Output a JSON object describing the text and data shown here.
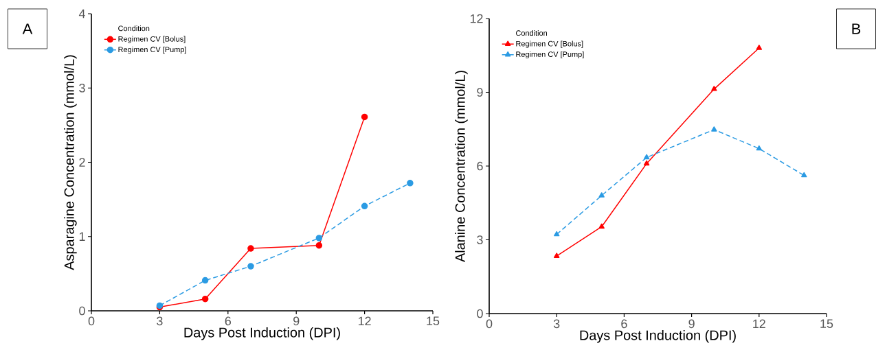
{
  "chart_data": [
    {
      "type": "line",
      "annotations": [
        "A"
      ],
      "xlabel": "Days Post Induction (DPI)",
      "ylabel": "Asparagine Concentration (mmol/L)",
      "legend_title": "Condition",
      "legend": "top left",
      "marker": "circle",
      "xlim": [
        0,
        15
      ],
      "xticks": [
        0,
        3,
        6,
        9,
        12,
        15
      ],
      "ylim": [
        0,
        4
      ],
      "yticks": [
        0,
        1,
        2,
        3,
        4
      ],
      "series": [
        {
          "name": "Regimen CV [Bolus]",
          "color": "#ff0000",
          "line_style": "solid",
          "x": [
            3,
            5,
            7,
            10,
            12
          ],
          "values": [
            0.05,
            0.16,
            0.84,
            0.88,
            2.61
          ]
        },
        {
          "name": "Regimen CV [Pump]",
          "color": "#2b9be3",
          "line_style": "dashed",
          "x": [
            3,
            5,
            7,
            10,
            12,
            14
          ],
          "values": [
            0.07,
            0.41,
            0.6,
            0.98,
            1.41,
            1.72
          ]
        }
      ]
    },
    {
      "type": "line",
      "annotations": [
        "B"
      ],
      "xlabel": "Days Post Induction (DPI)",
      "ylabel": "Alanine Concentration (mmol/L)",
      "legend_title": "Condition",
      "legend": "top left",
      "marker": "triangle",
      "xlim": [
        0,
        15
      ],
      "xticks": [
        0,
        3,
        6,
        9,
        12,
        15
      ],
      "ylim": [
        0,
        12
      ],
      "yticks": [
        0,
        3,
        6,
        9,
        12
      ],
      "series": [
        {
          "name": "Regimen CV [Bolus]",
          "color": "#ff0000",
          "line_style": "solid",
          "x": [
            3,
            5,
            7,
            10,
            12
          ],
          "values": [
            2.34,
            3.53,
            6.1,
            9.13,
            10.8
          ]
        },
        {
          "name": "Regimen CV [Pump]",
          "color": "#2b9be3",
          "line_style": "dashed",
          "x": [
            3,
            5,
            7,
            10,
            12,
            14
          ],
          "values": [
            3.22,
            4.8,
            6.35,
            7.48,
            6.71,
            5.62
          ]
        }
      ]
    }
  ]
}
